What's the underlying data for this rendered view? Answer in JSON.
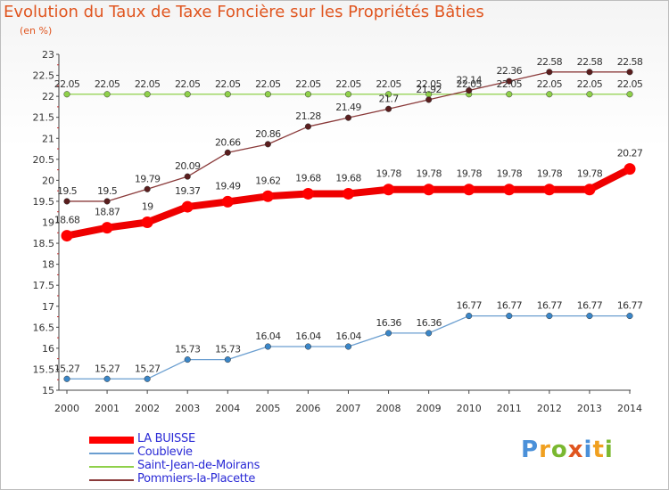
{
  "header": {
    "title": "Evolution du Taux de Taxe Foncière sur les Propriétés Bâties",
    "unit": "(en %)"
  },
  "brand": {
    "logo_text": "Proxiti",
    "letters": [
      {
        "ch": "P",
        "color": "#4a90d9"
      },
      {
        "ch": "r",
        "color": "#f0a020"
      },
      {
        "ch": "o",
        "color": "#7ab830"
      },
      {
        "ch": "x",
        "color": "#e0551f"
      },
      {
        "ch": "i",
        "color": "#4a90d9"
      },
      {
        "ch": "t",
        "color": "#f0a020"
      },
      {
        "ch": "i",
        "color": "#7ab830"
      }
    ]
  },
  "chart_data": {
    "type": "line",
    "title": "Evolution du Taux de Taxe Foncière sur les Propriétés Bâties",
    "ylabel": "(en %)",
    "xlabel": "",
    "ylim": [
      15,
      23
    ],
    "yticks": [
      "15",
      "15.5",
      "16",
      "16.5",
      "17",
      "17.5",
      "18",
      "18.5",
      "19",
      "19.5",
      "20",
      "20.5",
      "21",
      "21.5",
      "22",
      "22.5",
      "23"
    ],
    "categories": [
      "2000",
      "2001",
      "2002",
      "2003",
      "2004",
      "2005",
      "2006",
      "2007",
      "2008",
      "2009",
      "2010",
      "2011",
      "2012",
      "2013",
      "2014"
    ],
    "legend_position": "bottom-left",
    "grid": false,
    "series": [
      {
        "name": "LA BUISSE",
        "color": "#ff0000",
        "values": [
          18.68,
          18.87,
          19,
          19.37,
          19.49,
          19.62,
          19.68,
          19.68,
          19.78,
          19.78,
          19.78,
          19.78,
          19.78,
          19.78,
          20.27
        ],
        "labels": [
          "18.68",
          "18.87",
          "19",
          "19.37",
          "19.49",
          "19.62",
          "19.68",
          "19.68",
          "19.78",
          "19.78",
          "19.78",
          "19.78",
          "19.78",
          "19.78",
          "20.27"
        ]
      },
      {
        "name": "Coublevie",
        "color": "#6a9ed0",
        "values": [
          15.27,
          15.27,
          15.27,
          15.73,
          15.73,
          16.04,
          16.04,
          16.04,
          16.36,
          16.36,
          16.77,
          16.77,
          16.77,
          16.77,
          16.77
        ],
        "labels": [
          "15.27",
          "15.27",
          "15.27",
          "15.73",
          "15.73",
          "16.04",
          "16.04",
          "16.04",
          "16.36",
          "16.36",
          "16.77",
          "16.77",
          "16.77",
          "16.77",
          "16.77"
        ]
      },
      {
        "name": "Saint-Jean-de-Moirans",
        "color": "#8fd04a",
        "values": [
          22.05,
          22.05,
          22.05,
          22.05,
          22.05,
          22.05,
          22.05,
          22.05,
          22.05,
          22.05,
          22.05,
          22.05,
          22.05,
          22.05,
          22.05
        ],
        "labels": [
          "22.05",
          "22.05",
          "22.05",
          "22.05",
          "22.05",
          "22.05",
          "22.05",
          "22.05",
          "22.05",
          "22.05",
          "22.05",
          "22.05",
          "22.05",
          "22.05",
          "22.05"
        ]
      },
      {
        "name": "Pommiers-la-Placette",
        "color": "#8a3a3a",
        "values": [
          19.5,
          19.5,
          19.79,
          20.09,
          20.66,
          20.86,
          21.28,
          21.49,
          21.7,
          21.92,
          22.14,
          22.36,
          22.58,
          22.58,
          22.58
        ],
        "labels": [
          "19.5",
          "19.5",
          "19.79",
          "20.09",
          "20.66",
          "20.86",
          "21.28",
          "21.49",
          "21.7",
          "21.92",
          "22.14",
          "22.36",
          "22.58",
          "22.58",
          "22.58"
        ]
      }
    ]
  }
}
